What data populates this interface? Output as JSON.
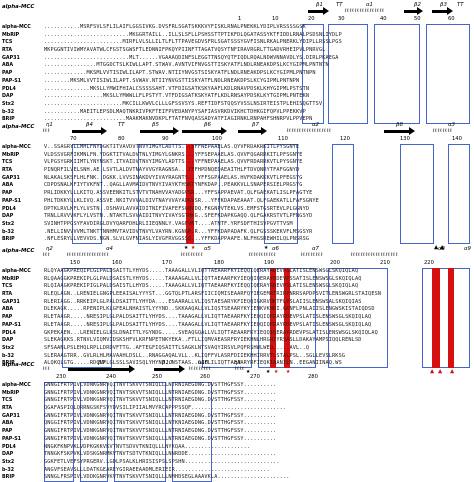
{
  "sequences": [
    "alpha-MCC",
    "MbRIP",
    "TCS",
    "RTA",
    "GAP31",
    "ABA",
    "PAP",
    "PAP-S1",
    "PDL4",
    "DAP",
    "Stx2",
    "b-32",
    "BRIP"
  ],
  "blocks": [
    {
      "structure_name": "alpha-MCC",
      "elements": [
        {
          "type": "label",
          "text": "β1"
        },
        {
          "type": "label",
          "text": "TT"
        },
        {
          "type": "label",
          "text": "α1"
        },
        {
          "type": "label",
          "text": "β2"
        },
        {
          "type": "label",
          "text": "β3"
        },
        {
          "type": "label",
          "text": "TT"
        }
      ],
      "ticks": [
        "1",
        "10",
        "20",
        "30",
        "40",
        "50",
        "60"
      ],
      "rows": [
        "...........MSRFSVLSFLILAIFLGGSIVKG.DVSFRLSGATSKKKVYFISKLRNALPNEKKLYDIPLVRSSSSGSK",
        "..........................MKGGRTAILL..ILLSLSFLLPSHSSTTPTIKFDLQGATASSYKTFIDDLRNALPSDSNLIYDLP",
        "........................MIRFLVLSLLILTLFLTTPAVEGDVSFRLSGATSSSYGVFISNLRKALPNERKLYDIPLLRSSLPGS",
        "MKPGGNTIVIWMYAVATWLCFGSTSGWSFTLEDNNIFPKQYPIINFTTAGATVQSYTNFIRAVRGRLTTGADVRHEIPVLPNRVGL",
        "..........................MLT......VGAAAQDINFSLEGGTTNSQYQTFIQDLRQALNDWVNNAVDLYS.DIRLPKAEGA",
        "................MTGGDCTSLKIWLLAPT.STWAV.AVNTVIFNVGSTTISKYATFLNDLRNEAKDPSLKCYGIPMLPNTNTN",
        ".............MKSMLVVTISIWLILAPT.STWAV.NTIIYNVGSTSISKYATFLNDLRNEAKDPSLKCYGIPMLPNTNPN",
        "........MKSMLVVTISIWLILAPT.SVWAV.NTIIYNVGSTTISKYATFLNDLRNEAKDPSLKCYGIPMLPNTNPN",
        "..............MKSLLYMWIFHIALCSSSSSAHT.VTFDIGSATKSKYAAFLKDLRNAVPDSKLKHYGIPMLPSTSTN",
        "..................MKSLLYMWWLLFLPSTYT.VTFDIGSATKSKYATFLKDLRNSAYPDSKLKYTGIPMLPNTEKN",
        "........................MKCILLKWVLCLLLGFSSVSYS.REFTIDFSTQQSYVSSLNSIRTEISTPLEHISQGTTSV",
        "...........MAEITLEPSDLMAQTNKRIVPKFTEIFPVEDANYPYSAFIASVRKDVIKHCTDHKGIFQPVLPPEKKVP",
        ".........................MAAKMAKNVDKPLFTATFNVQASSADYATFIAGIRNKLRNPAHFSHNRPVLPPVEPN"
      ]
    },
    {
      "structure_name": "alpha-MCC",
      "elements": [
        {
          "type": "label",
          "text": "η1"
        },
        {
          "type": "label",
          "text": "β4"
        },
        {
          "type": "label",
          "text": "TT"
        },
        {
          "type": "label",
          "text": "β5"
        },
        {
          "type": "label",
          "text": "β6"
        },
        {
          "type": "label",
          "text": "β7"
        },
        {
          "type": "label",
          "text": "α2"
        },
        {
          "type": "label",
          "text": "β8"
        },
        {
          "type": "label",
          "text": "α3"
        }
      ],
      "ticks": [
        "70",
        "80",
        "90",
        "100",
        "110",
        "120",
        "130",
        "140"
      ],
      "rows": [
        "V..SSAGRYLLMHLFNYDGKTITVAVDVTNVYIMGYLADTTS...YFFNEPAAELAS.QYVFRDAKRKITLPYSGNYE",
        "VLDSSVGRFIKMNLFN.YDGKTITVALDVTNLYIMGYLGNKRS...YFFSEPAAELAS.QVVFQGARRKITLPFSGNYE",
        "VLPGSYGRKIIMTLYNYNSKT.ITVAIDVTNVYIMGYLADTTS...YFFNEPAAELAS.QVVFRDARRKVTLPYSGNYE",
        "PINQRFILVELSNH.AE.LSVTLALDVTNAYVVGYRAGNSA...YFFHPDNQEDAEAITHLFTDVQNRYTFAFGGNYD",
        "NLAKALSKSFLHLFNK..DGKK.LVVSINAKDVYIVAYRAGNTS...YFFSGPAAELAS.HVFKDAKKKVTLPFEGSYG",
        "CDPDSNALKFIYTVKFNT..QAGLLAVMAIDVTNVYIVAYKTHSKTYNFKDAP..PEAKKVLLSNAPERSIELPRGSYG",
        "PRLIDKKYLLLKITQ.ASSVEENKITLSTVTVTNAHVVAYADGVSR...YFFSAPPAEVAT.QLFGAEKATLISLPFAGTYE",
        "PHLTDKKYLLKLIVQ.ASSVE.NKITVVVALDIVTNAYVVAYADGVSR...YFFKDAPAEAAAT.QLFGAEKATLLFAFSGNYE",
        "DPTKLRVLKFLYLVSTN..DSHAVLAVVAIDITNIFIVAFEFSGNVDQ.FKGNPVTEKLVS.EMFSTGSRTEVLPLGGNYD",
        "TRNLLRVVVKFLYLVSTN..NTAKTLSVVAIDITNVYIVAYSGTHKG..SFEFKDAPKGAQQ.QLFGAKRSTVTLPFNGSYD",
        "SVINHTPPGSYFAVDIRGLDVYQARFDHLRLIIEQNNLY.VAGFVNT....ATNTF.YRFSDFTHISVPGVTTVSM",
        ".NELLINVVVVMLTNKTTNNHMVTAVIDVTNVYLVAYRN.KGNGR.R...YFFKDAPADAFK.QLFGSSSKEKVFLMSGSYR",
        ".NFLESRYLLVEVVDS.NGN.SLVLGVFNIASLYIVGFRVGGSSQ...YFFKDAPPAAFE.NLFHGSREWHILQLPNSRSG"
      ]
    },
    {
      "structure_name": "alpha-MCC",
      "elements": [
        {
          "type": "label",
          "text": "η2"
        },
        {
          "type": "label",
          "text": "α4"
        },
        {
          "type": "label",
          "text": "α5"
        },
        {
          "type": "label",
          "text": "α6"
        },
        {
          "type": "label",
          "text": "α7"
        },
        {
          "type": "label",
          "text": "α8"
        },
        {
          "type": "label",
          "text": "α9"
        }
      ],
      "ticks": [
        "150",
        "160",
        "170",
        "180",
        "190",
        "200",
        "210",
        "220"
      ],
      "rows": [
        "RLQYAAGKPREQIPLGLPALDSAITTLYHYDS.....TAAAGALLVLIQTTAEAARFKYIEQQIQERAYRDEVPSLATISLENSWSGLSKQIQLAQ",
        "RLQAAGGKPREKIPLGLPALDSAISTLYHYDS.....TAAAAGALLVLIQTTAEAARFKYIEQQIQERAYRDEVPSSATISLENSWSGLSKQIQLAQ",
        "RLQIAAGKPREKIPIGLPALDSAISTLLHYDS.....TAAAGALLVLIQTTAEAARFKYIEQQIQERAYRDEVPSLATISLENSWSGLSKQIQLAQ",
        "RLEQLAGN..LRENIELGNGPLEEAISALYYYST...GGTQLPTLARSFIICIQMISEAARFQYIEGEMRTRIRYNRRSAPDPSVITLENSWGRLSTAIQESN",
        "RLERIAGG..RRKEIPLGLPALDSAITTLYHYDA....ESAARALLVLIQSTAESARYKFIEQQIGKRVDKTFLPSLAIISLENSWSALSKQIQIAS",
        "DLEKAGK.....RPENIPLKLGFEALNHAISTLYYYND..SKKAAQALLVLIQSTSEAARYKYIENKVKNKI.GKNFLPNLAIISLENGWSKISTAIQDSD",
        "RLETAAGR.....NRESIPLGLPALDSAITTLYHYDS....TAAAGALLVLIQTTAEAARFKYIEQQIQERAYRDEVPSLATISLENSWSGLSKQIQLAQ",
        "RLETAAGR.....NRESIPLGLPALDSAITTLYHYDS....TAAAGALLVLIQTTAEAARFKYIEQQIQERAYRDEVPSLATISLENSWSGLSKQIQLAQ",
        "GKPEKAEN...LRENIELGLRSLDNAITTLYGYNDG.....SVEAQGQALLVLIQTTAEAARFKYIEQQIQERAYRDEVPSLATISLENSWSGLSKQIQLAQ",
        "SLEKAGKKS.RTNVLVIQMVIDSKSHFVLKRFNPETNKYEKA..FTLLIQMVAEASRFRYIEKHNLHRGNIYRSASLLDAKAYAMPSIQQLRENLSD",
        "SFSAANLPSLEHQLRPLLDRDVFTTG..AFTEGFIQSAITTLSAGKLNTSVAQYIRSVLPQFRSHWLWEQ.....AVL..Q",
        "SLERAAGTRR..GVLRLHLMAVAAHLDSLL..RNAGGAQALVLL..KLIQFFVLASRFDIIEKHHIRRVTLSTALPSL..SGLLEVSLRKSG",
        "ALQKQLGTG.....RDQVPLGLSSLSAVISQLYHYND..NSTAAS..GAFLILIQTTAEAARYRFIEQKIAANILN..EEGANIINAQ.WS"
      ]
    },
    {
      "structure_name": "alpha-MCC",
      "elements": [
        {
          "type": "label",
          "text": "β9"
        },
        {
          "type": "label",
          "text": "β10"
        },
        {
          "type": "label",
          "text": "α10"
        },
        {
          "type": "label",
          "text": "η3"
        }
      ],
      "ticks": [
        "230",
        "240",
        "250",
        "260",
        "270",
        "280"
      ],
      "rows": [
        "GNNGIFRTPIVLVDNKGNRVQITNVTSKVVTSNIQLLLNTRNIAEGDNG.DVSTTHGFSSY..........",
        "GNNGIFRTPIVLVDNKGNRVQITNVTSKVVTSNIQLLLNTRNIAEGDNG.DVSTTHGFSSY..........",
        "GNNGIFRTPIVLVDNKGNRVQITNVTSKVVTSNIQLLLNTRNIAEGDNG.DVSTTHGFSSY..........",
        "QGAFASPIQLQRRNGSKFSVYDVSILIPIIALMVYRCAPPPSSQF.............................",
        "GNNGIFRTPIVLVDNKGNRVQITNVTSKVVTSNIQLLLNTRNIAEGDNG.DVSTTHGFSSY..........",
        "QNGGIFRTPIVLVDNKGNRVQITNVTSKVVTSNIQLLLNTKNIAEGDNG.DVSTTHGFSSY..........",
        "GNNGIFRTPIVLVDNKGNRVQITNVTSKVVTSNIQLLLNTRNIAEGDNG.DVSTTHGFSSY..........",
        "GNNGIFRTPIVLVDNKGNRVQITNVTSKVVTSNIQLLLNTRNIAEGDNG.DVSTTHGFSSY..........",
        "NNGKFKNPVKLVDPKGKKVKVTNVTSDVVTKNIQLLLNYKQAA....................",
        "TNNGKFSKPVKLVDSKGNRMKVTNVTSDTVTKNIQLLLNNRDDE...........................",
        "GGKFETLVEFSYPRGERV.LGDLPSALKLHRISISPSLSPSHN.............................",
        "ANGVFSEAVSLLLDATKGEAREYGIRAEEAADMLERIEIR.............................",
        "SNNGLFRSPIVLVDDKGNRVKVTNVTSKVVTSNIQLLLNMHDSEGLAAAVKLA......................"
      ]
    }
  ]
}
